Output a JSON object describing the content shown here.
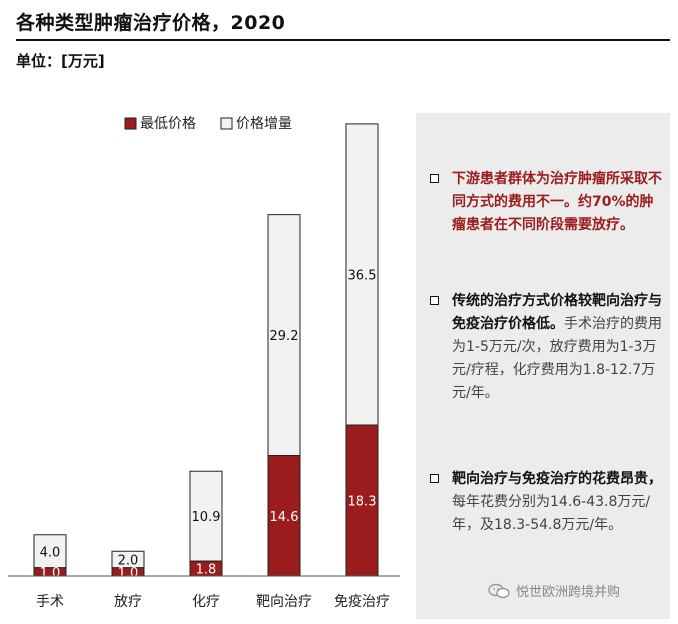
{
  "header": {
    "title": "各种类型肿瘤治疗价格，2020",
    "unit": "单位：[万元]"
  },
  "chart_data": {
    "type": "bar",
    "stacked": true,
    "categories": [
      "手术",
      "放疗",
      "化疗",
      "靶向治疗",
      "免疫治疗"
    ],
    "series": [
      {
        "name": "最低价格",
        "values": [
          1.0,
          1.0,
          1.8,
          14.6,
          18.3
        ],
        "color": "#9b1c1c"
      },
      {
        "name": "价格增量",
        "values": [
          4.0,
          2.0,
          10.9,
          29.2,
          36.5
        ],
        "color": "#f2f2f2"
      }
    ],
    "data_labels": {
      "lower": [
        "1.0",
        "1.0",
        "1.8",
        "14.6",
        "18.3"
      ],
      "upper": [
        "4.0",
        "2.0",
        "10.9",
        "29.2",
        "36.5"
      ]
    },
    "ylim": [
      0,
      55
    ],
    "legend": "top",
    "grid": false
  },
  "sidebar": {
    "bullets": [
      {
        "lead": "下游患者群体为治疗肿瘤所采取不同方式的费用不一。约70%的肿瘤患者在不同阶段需要放疗。",
        "rest": "",
        "style": "red"
      },
      {
        "lead": "传统的治疗方式价格较靶向治疗与免疫治疗价格低。",
        "rest": "手术治疗的费用为1-5万元/次，放疗费用为1-3万元/疗程，化疗费用为1.8-12.7万元/年。",
        "style": "bold"
      },
      {
        "lead": "靶向治疗与免疫治疗的花费昂贵，",
        "rest": "每年花费分别为14.6-43.8万元/年，及18.3-54.8万元/年。",
        "style": "bold"
      }
    ]
  },
  "watermark": {
    "text": "悦世欧洲跨境并购",
    "icon": "wechat-icon"
  }
}
